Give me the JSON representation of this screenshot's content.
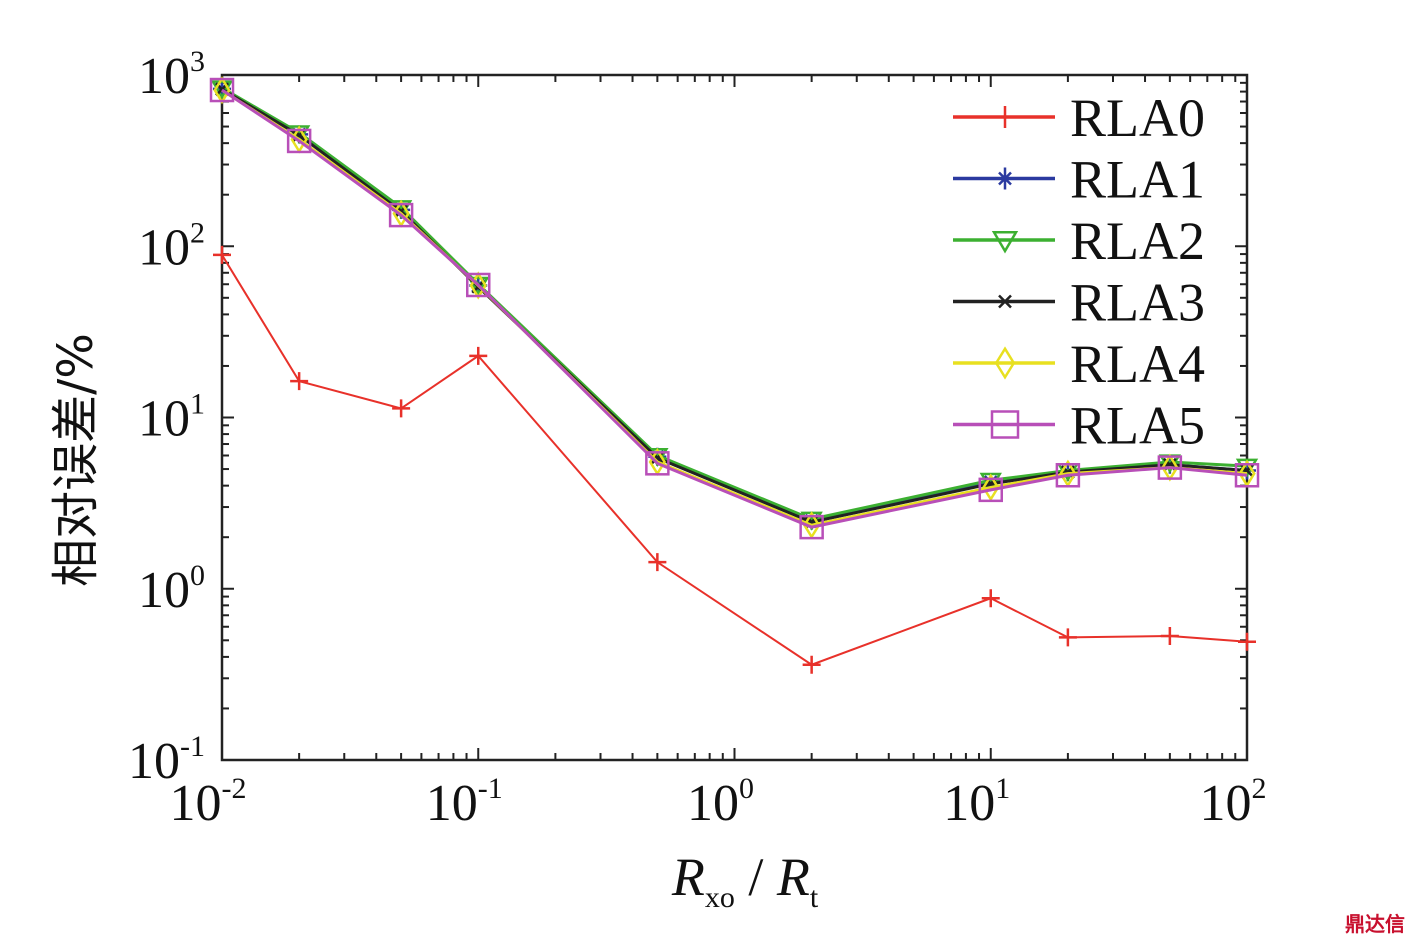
{
  "chart_data": {
    "type": "line",
    "title": "",
    "xlabel": {
      "main": "R",
      "sub": "xo",
      "sep": " / ",
      "main2": "R",
      "sub2": "t"
    },
    "ylabel": "相对误差/%",
    "xscale": "log",
    "yscale": "log",
    "xlim": [
      0.01,
      100
    ],
    "ylim": [
      0.1,
      1000
    ],
    "xticks": [
      {
        "base": "10",
        "exp": "-2"
      },
      {
        "base": "10",
        "exp": "-1"
      },
      {
        "base": "10",
        "exp": "0"
      },
      {
        "base": "10",
        "exp": "1"
      },
      {
        "base": "10",
        "exp": "2"
      }
    ],
    "yticks": [
      {
        "base": "10",
        "exp": "3"
      },
      {
        "base": "10",
        "exp": "2"
      },
      {
        "base": "10",
        "exp": "1"
      },
      {
        "base": "10",
        "exp": "0"
      },
      {
        "base": "10",
        "exp": "-1"
      }
    ],
    "grid": false,
    "legend_position": "top-right",
    "x": [
      0.01,
      0.02,
      0.05,
      0.1,
      0.5,
      2,
      10,
      20,
      50,
      100
    ],
    "series": [
      {
        "name": "RLA0",
        "color": "#e8312a",
        "marker": "plus",
        "values": [
          89,
          16.3,
          11.3,
          22.9,
          1.43,
          0.36,
          0.88,
          0.52,
          0.53,
          0.49
        ]
      },
      {
        "name": "RLA1",
        "color": "#2b3aa0",
        "marker": "star",
        "values": [
          830,
          450,
          163,
          59,
          5.9,
          2.5,
          4.2,
          4.8,
          5.3,
          4.9
        ]
      },
      {
        "name": "RLA2",
        "color": "#3cb031",
        "marker": "triangle-down",
        "values": [
          840,
          460,
          168,
          60,
          6.0,
          2.55,
          4.3,
          4.9,
          5.5,
          5.2
        ]
      },
      {
        "name": "RLA3",
        "color": "#222222",
        "marker": "x",
        "values": [
          825,
          445,
          160,
          58,
          5.8,
          2.45,
          4.1,
          4.8,
          5.3,
          4.9
        ]
      },
      {
        "name": "RLA4",
        "color": "#e8e020",
        "marker": "diamond",
        "values": [
          815,
          420,
          155,
          59,
          5.5,
          2.35,
          3.9,
          4.7,
          5.1,
          4.7
        ]
      },
      {
        "name": "RLA5",
        "color": "#b84fb8",
        "marker": "square",
        "values": [
          817,
          412,
          152,
          59.4,
          5.4,
          2.29,
          3.78,
          4.6,
          5.1,
          4.6
        ]
      }
    ]
  },
  "watermark": "鼎达信"
}
